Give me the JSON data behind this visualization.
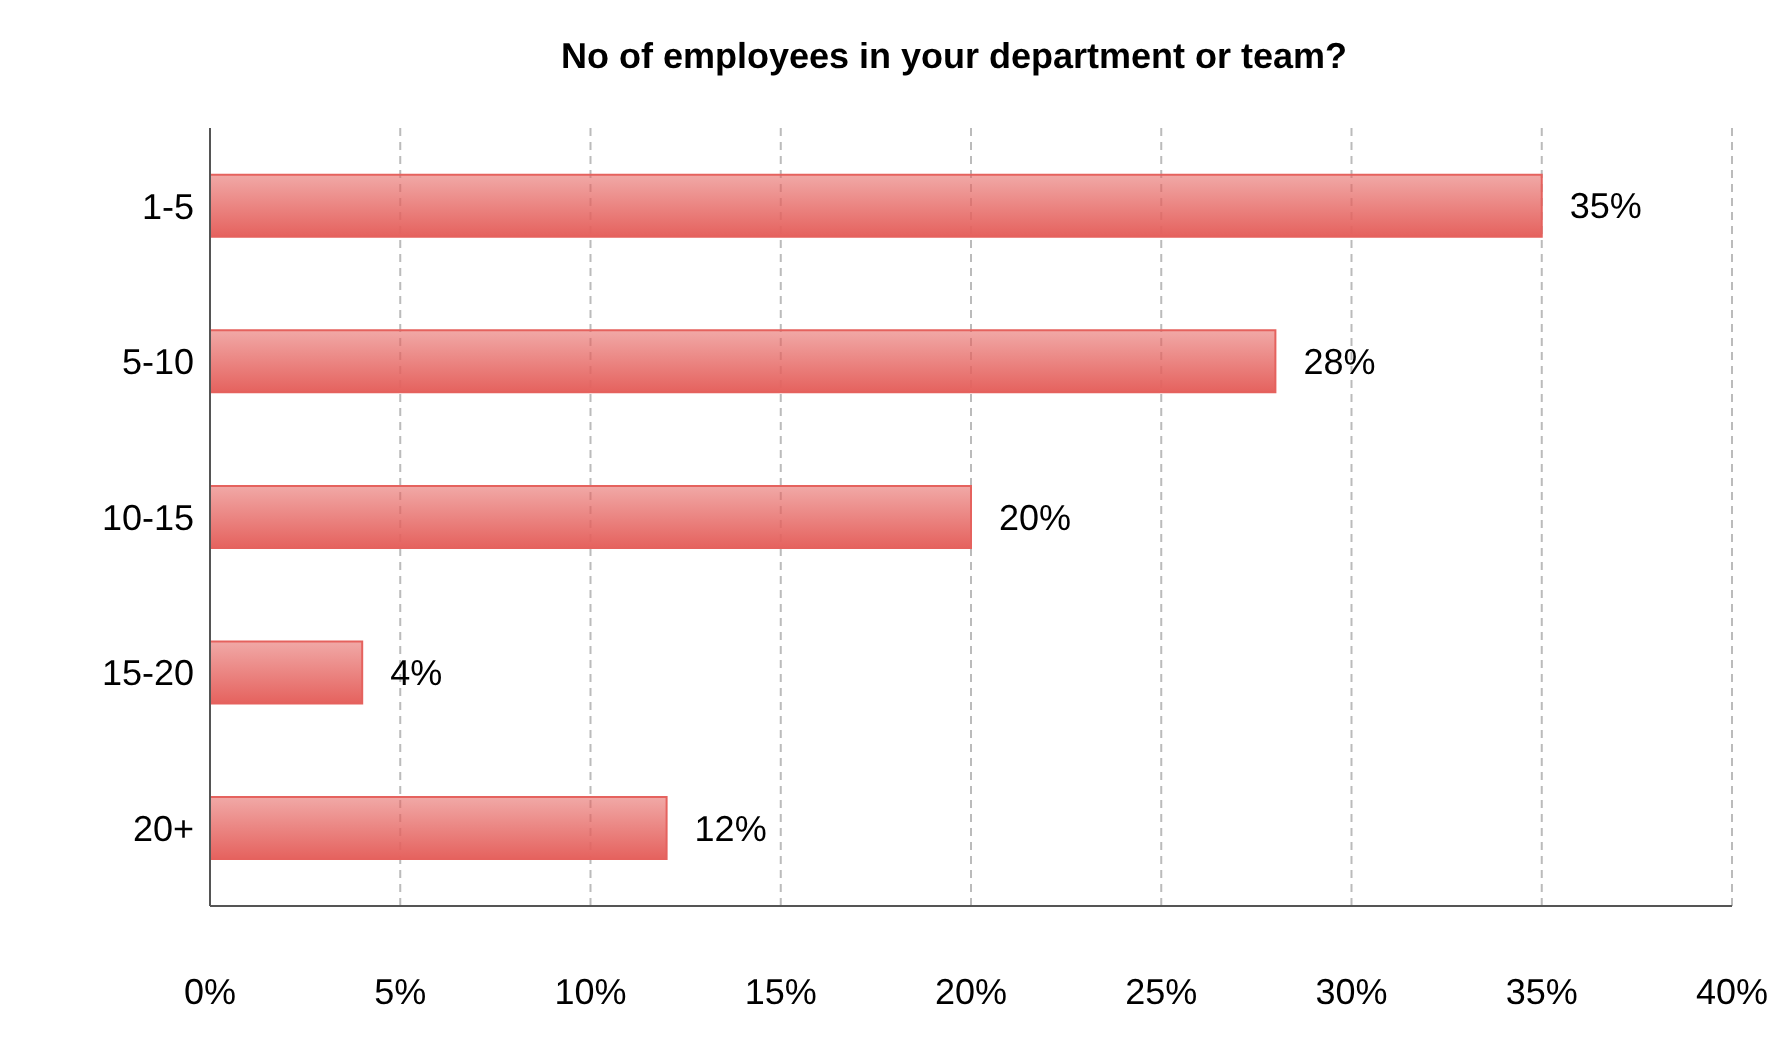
{
  "chart_data": {
    "type": "bar",
    "orientation": "horizontal",
    "title": "No of employees in your department or team?",
    "categories": [
      "1-5",
      "5-10",
      "10-15",
      "15-20",
      "20+"
    ],
    "values": [
      35,
      28,
      20,
      4,
      12
    ],
    "value_labels": [
      "35%",
      "28%",
      "20%",
      "4%",
      "12%"
    ],
    "color": "#e5625e",
    "xlim": [
      0,
      40
    ],
    "xticks": [
      {
        "value": 0,
        "label": "0%"
      },
      {
        "value": 5,
        "label": "5%"
      },
      {
        "value": 10,
        "label": "10%"
      },
      {
        "value": 15,
        "label": "15%"
      },
      {
        "value": 20,
        "label": "20%"
      },
      {
        "value": 25,
        "label": "25%"
      },
      {
        "value": 30,
        "label": "30%"
      },
      {
        "value": 35,
        "label": "35%"
      },
      {
        "value": 40,
        "label": "40%"
      }
    ],
    "grid": "x",
    "legend": false
  }
}
